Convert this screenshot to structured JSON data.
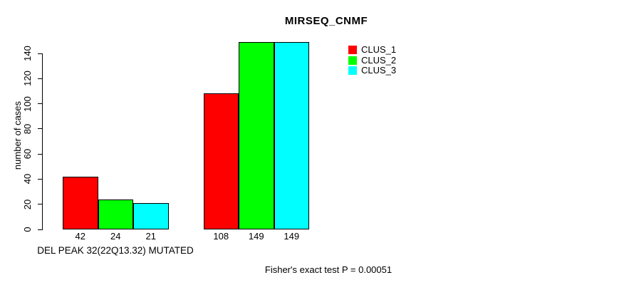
{
  "chart_data": {
    "type": "bar",
    "title": "MIRSEQ_CNMF",
    "ylabel": "number of cases",
    "xlabel": "DEL PEAK 32(22Q13.32) MUTATED",
    "annotation": "Fisher's exact test P = 0.00051",
    "ylim": [
      0,
      140
    ],
    "yticks": [
      0,
      20,
      40,
      60,
      80,
      100,
      120,
      140
    ],
    "grid": false,
    "legend_position": "top-right",
    "background_color": "#ffffff",
    "axis_color": "#000000",
    "series": [
      {
        "name": "CLUS_1",
        "color": "#FF0000"
      },
      {
        "name": "CLUS_2",
        "color": "#00FF00"
      },
      {
        "name": "CLUS_3",
        "color": "#00FFFF"
      }
    ],
    "categories": [
      "DEL PEAK 32(22Q13.32) MUTATED",
      ""
    ],
    "groups": [
      {
        "label": "DEL PEAK 32(22Q13.32) MUTATED",
        "values": [
          42,
          24,
          21
        ]
      },
      {
        "label": "",
        "values": [
          108,
          149,
          149
        ]
      }
    ],
    "bar_value_labels": [
      "42",
      "24",
      "21",
      "108",
      "149",
      "149"
    ]
  }
}
